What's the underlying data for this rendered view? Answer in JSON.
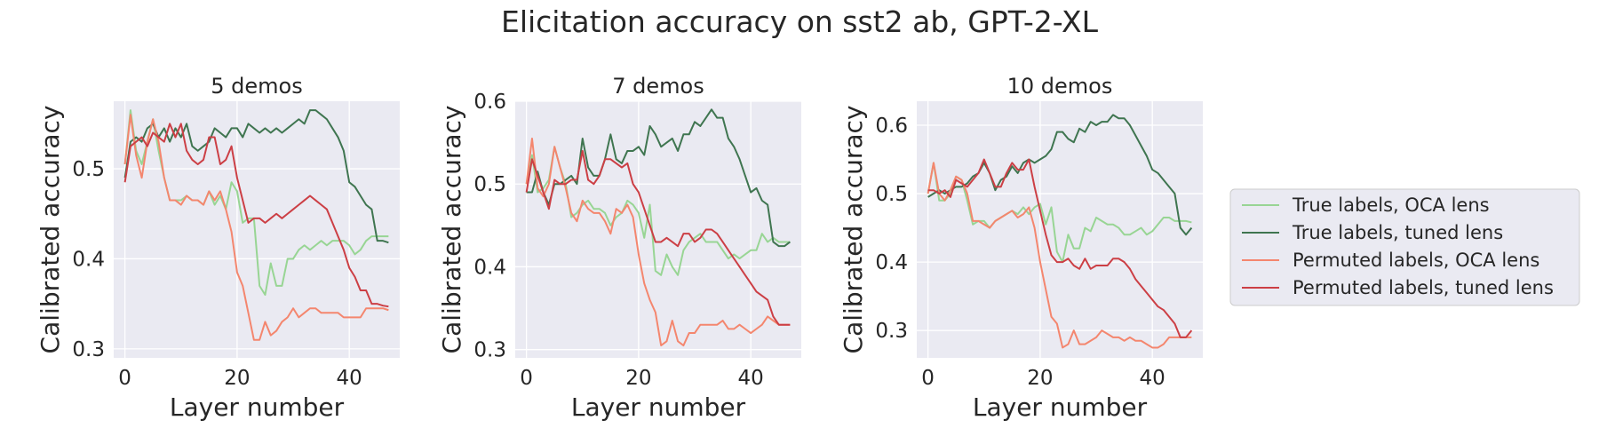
{
  "figure": {
    "title": "Elicitation accuracy on sst2 ab, GPT-2-XL"
  },
  "colors": {
    "panel_bg": "#EAEAF2",
    "grid": "#FFFFFF",
    "true_oca": "#98D594",
    "true_tuned": "#3F7550",
    "perm_oca": "#F4866E",
    "perm_tuned": "#CC3F45"
  },
  "legend": {
    "placement": "center-right",
    "entries": [
      {
        "label": "True labels, OCA lens",
        "color_key": "true_oca"
      },
      {
        "label": "True labels, tuned lens",
        "color_key": "true_tuned"
      },
      {
        "label": "Permuted labels, OCA lens",
        "color_key": "perm_oca"
      },
      {
        "label": "Permuted labels, tuned lens",
        "color_key": "perm_tuned"
      }
    ]
  },
  "chart_data": [
    {
      "type": "line",
      "title": "5 demos",
      "xlabel": "Layer number",
      "ylabel": "Calibrated accuracy",
      "xlim": [
        -2,
        49
      ],
      "ylim": [
        0.29,
        0.575
      ],
      "xticks": [
        0,
        20,
        40
      ],
      "yticks": [
        0.3,
        0.4,
        0.5
      ],
      "grid": true,
      "series": [
        {
          "name": "True labels, OCA lens",
          "color_key": "true_oca",
          "values": [
            0.505,
            0.565,
            0.52,
            0.505,
            0.53,
            0.555,
            0.52,
            0.49,
            0.465,
            0.465,
            0.465,
            0.47,
            0.465,
            0.465,
            0.46,
            0.475,
            0.46,
            0.47,
            0.455,
            0.485,
            0.475,
            0.44,
            0.445,
            0.445,
            0.37,
            0.36,
            0.395,
            0.37,
            0.37,
            0.4,
            0.4,
            0.41,
            0.415,
            0.41,
            0.415,
            0.42,
            0.415,
            0.42,
            0.42,
            0.42,
            0.415,
            0.405,
            0.41,
            0.42,
            0.425,
            0.425,
            0.425,
            0.425
          ]
        },
        {
          "name": "True labels, tuned lens",
          "color_key": "true_tuned",
          "values": [
            0.49,
            0.53,
            0.535,
            0.53,
            0.545,
            0.55,
            0.535,
            0.545,
            0.53,
            0.545,
            0.535,
            0.55,
            0.525,
            0.52,
            0.525,
            0.53,
            0.545,
            0.54,
            0.535,
            0.545,
            0.545,
            0.535,
            0.55,
            0.545,
            0.54,
            0.545,
            0.54,
            0.545,
            0.54,
            0.545,
            0.55,
            0.555,
            0.55,
            0.565,
            0.565,
            0.56,
            0.555,
            0.545,
            0.535,
            0.52,
            0.485,
            0.48,
            0.47,
            0.46,
            0.455,
            0.42,
            0.42,
            0.418
          ]
        },
        {
          "name": "Permuted labels, OCA lens",
          "color_key": "perm_oca",
          "values": [
            0.505,
            0.56,
            0.515,
            0.49,
            0.53,
            0.555,
            0.53,
            0.49,
            0.465,
            0.465,
            0.46,
            0.47,
            0.465,
            0.465,
            0.46,
            0.475,
            0.465,
            0.475,
            0.455,
            0.43,
            0.385,
            0.37,
            0.34,
            0.31,
            0.31,
            0.33,
            0.315,
            0.32,
            0.33,
            0.335,
            0.345,
            0.335,
            0.34,
            0.345,
            0.345,
            0.34,
            0.34,
            0.34,
            0.34,
            0.335,
            0.335,
            0.335,
            0.335,
            0.345,
            0.345,
            0.345,
            0.345,
            0.343
          ]
        },
        {
          "name": "Permuted labels, tuned lens",
          "color_key": "perm_tuned",
          "values": [
            0.485,
            0.525,
            0.53,
            0.535,
            0.525,
            0.54,
            0.535,
            0.53,
            0.55,
            0.535,
            0.55,
            0.52,
            0.51,
            0.505,
            0.51,
            0.535,
            0.535,
            0.505,
            0.51,
            0.525,
            0.49,
            0.465,
            0.44,
            0.445,
            0.445,
            0.44,
            0.445,
            0.45,
            0.445,
            0.45,
            0.455,
            0.46,
            0.465,
            0.47,
            0.465,
            0.46,
            0.455,
            0.44,
            0.425,
            0.41,
            0.39,
            0.38,
            0.365,
            0.365,
            0.35,
            0.35,
            0.348,
            0.347
          ]
        }
      ]
    },
    {
      "type": "line",
      "title": "7 demos",
      "xlabel": "Layer number",
      "ylabel": "Calibrated accuracy",
      "xlim": [
        -2,
        49
      ],
      "ylim": [
        0.29,
        0.6
      ],
      "xticks": [
        0,
        20,
        40
      ],
      "yticks": [
        0.3,
        0.4,
        0.5,
        0.6
      ],
      "grid": true,
      "series": [
        {
          "name": "True labels, OCA lens",
          "color_key": "true_oca",
          "values": [
            0.5,
            0.535,
            0.49,
            0.495,
            0.505,
            0.545,
            0.52,
            0.5,
            0.46,
            0.465,
            0.475,
            0.48,
            0.47,
            0.47,
            0.465,
            0.45,
            0.46,
            0.465,
            0.48,
            0.475,
            0.465,
            0.435,
            0.475,
            0.395,
            0.39,
            0.415,
            0.4,
            0.39,
            0.42,
            0.43,
            0.435,
            0.44,
            0.43,
            0.43,
            0.43,
            0.42,
            0.41,
            0.415,
            0.41,
            0.415,
            0.42,
            0.42,
            0.44,
            0.43,
            0.435,
            0.43,
            0.43,
            0.43
          ]
        },
        {
          "name": "True labels, tuned lens",
          "color_key": "true_tuned",
          "values": [
            0.49,
            0.49,
            0.515,
            0.49,
            0.475,
            0.5,
            0.5,
            0.505,
            0.51,
            0.5,
            0.555,
            0.52,
            0.51,
            0.51,
            0.53,
            0.56,
            0.53,
            0.525,
            0.54,
            0.54,
            0.545,
            0.535,
            0.57,
            0.56,
            0.545,
            0.55,
            0.555,
            0.54,
            0.56,
            0.56,
            0.575,
            0.57,
            0.58,
            0.59,
            0.58,
            0.58,
            0.555,
            0.545,
            0.53,
            0.51,
            0.49,
            0.495,
            0.48,
            0.475,
            0.43,
            0.425,
            0.425,
            0.43
          ]
        },
        {
          "name": "Permuted labels, OCA lens",
          "color_key": "perm_oca",
          "values": [
            0.5,
            0.555,
            0.495,
            0.485,
            0.5,
            0.545,
            0.52,
            0.495,
            0.465,
            0.455,
            0.48,
            0.47,
            0.465,
            0.465,
            0.455,
            0.44,
            0.47,
            0.465,
            0.475,
            0.46,
            0.415,
            0.38,
            0.36,
            0.345,
            0.305,
            0.31,
            0.335,
            0.31,
            0.305,
            0.32,
            0.32,
            0.33,
            0.33,
            0.33,
            0.33,
            0.335,
            0.325,
            0.325,
            0.33,
            0.325,
            0.32,
            0.325,
            0.33,
            0.34,
            0.335,
            0.33,
            0.33,
            0.33
          ]
        },
        {
          "name": "Permuted labels, tuned lens",
          "color_key": "perm_tuned",
          "values": [
            0.49,
            0.53,
            0.51,
            0.49,
            0.47,
            0.505,
            0.5,
            0.5,
            0.505,
            0.505,
            0.54,
            0.505,
            0.5,
            0.51,
            0.53,
            0.53,
            0.525,
            0.52,
            0.525,
            0.5,
            0.49,
            0.47,
            0.45,
            0.43,
            0.43,
            0.435,
            0.43,
            0.425,
            0.44,
            0.44,
            0.43,
            0.435,
            0.445,
            0.445,
            0.44,
            0.43,
            0.42,
            0.41,
            0.4,
            0.39,
            0.38,
            0.37,
            0.365,
            0.36,
            0.34,
            0.33,
            0.33,
            0.33
          ]
        }
      ]
    },
    {
      "type": "line",
      "title": "10 demos",
      "xlabel": "Layer number",
      "ylabel": "Calibrated accuracy",
      "xlim": [
        -2,
        49
      ],
      "ylim": [
        0.26,
        0.635
      ],
      "xticks": [
        0,
        20,
        40
      ],
      "yticks": [
        0.3,
        0.4,
        0.5,
        0.6
      ],
      "grid": true,
      "series": [
        {
          "name": "True labels, OCA lens",
          "color_key": "true_oca",
          "values": [
            0.5,
            0.545,
            0.49,
            0.49,
            0.5,
            0.525,
            0.52,
            0.49,
            0.455,
            0.46,
            0.46,
            0.45,
            0.46,
            0.465,
            0.47,
            0.475,
            0.47,
            0.48,
            0.47,
            0.48,
            0.485,
            0.455,
            0.48,
            0.415,
            0.4,
            0.44,
            0.42,
            0.42,
            0.45,
            0.445,
            0.465,
            0.46,
            0.455,
            0.455,
            0.45,
            0.44,
            0.44,
            0.445,
            0.45,
            0.44,
            0.445,
            0.455,
            0.465,
            0.465,
            0.46,
            0.46,
            0.46,
            0.458
          ]
        },
        {
          "name": "True labels, tuned lens",
          "color_key": "true_tuned",
          "values": [
            0.495,
            0.5,
            0.505,
            0.5,
            0.505,
            0.51,
            0.51,
            0.515,
            0.525,
            0.53,
            0.545,
            0.53,
            0.505,
            0.52,
            0.525,
            0.54,
            0.53,
            0.545,
            0.55,
            0.545,
            0.55,
            0.555,
            0.565,
            0.59,
            0.59,
            0.58,
            0.575,
            0.595,
            0.59,
            0.605,
            0.6,
            0.605,
            0.605,
            0.615,
            0.61,
            0.61,
            0.6,
            0.585,
            0.57,
            0.555,
            0.535,
            0.53,
            0.52,
            0.51,
            0.5,
            0.45,
            0.44,
            0.45
          ]
        },
        {
          "name": "Permuted labels, OCA lens",
          "color_key": "perm_oca",
          "values": [
            0.5,
            0.545,
            0.5,
            0.49,
            0.505,
            0.525,
            0.52,
            0.5,
            0.46,
            0.46,
            0.455,
            0.45,
            0.46,
            0.465,
            0.47,
            0.475,
            0.465,
            0.47,
            0.48,
            0.45,
            0.4,
            0.36,
            0.32,
            0.31,
            0.275,
            0.28,
            0.3,
            0.28,
            0.28,
            0.285,
            0.29,
            0.3,
            0.295,
            0.29,
            0.29,
            0.285,
            0.29,
            0.285,
            0.285,
            0.28,
            0.275,
            0.275,
            0.28,
            0.29,
            0.29,
            0.29,
            0.29,
            0.29
          ]
        },
        {
          "name": "Permuted labels, tuned lens",
          "color_key": "perm_tuned",
          "values": [
            0.505,
            0.505,
            0.5,
            0.505,
            0.495,
            0.52,
            0.515,
            0.51,
            0.52,
            0.53,
            0.55,
            0.53,
            0.51,
            0.51,
            0.53,
            0.545,
            0.535,
            0.535,
            0.55,
            0.51,
            0.475,
            0.44,
            0.41,
            0.4,
            0.4,
            0.405,
            0.395,
            0.39,
            0.405,
            0.39,
            0.395,
            0.395,
            0.395,
            0.405,
            0.405,
            0.4,
            0.39,
            0.375,
            0.365,
            0.355,
            0.345,
            0.335,
            0.33,
            0.32,
            0.31,
            0.29,
            0.29,
            0.3
          ]
        }
      ]
    }
  ]
}
